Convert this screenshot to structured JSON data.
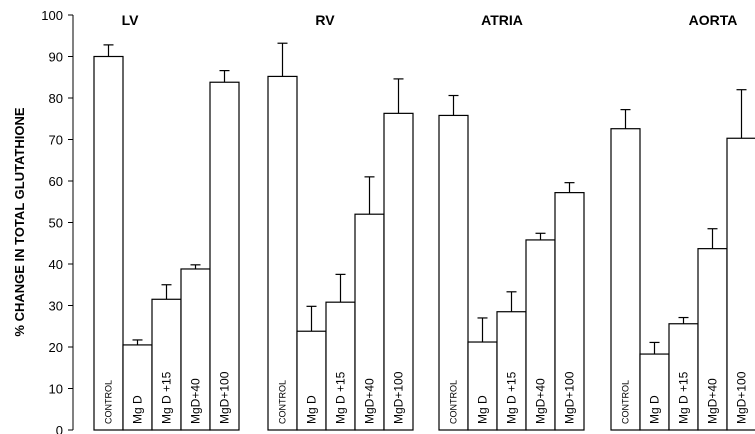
{
  "chart_data": {
    "type": "bar",
    "ylabel": "% CHANGE IN TOTAL GLUTATHIONE",
    "ylim": [
      0,
      100
    ],
    "yticks": [
      0,
      10,
      20,
      30,
      40,
      50,
      60,
      70,
      80,
      90,
      100
    ],
    "categories": [
      "CONTROL",
      "Mg D",
      "Mg D +15",
      "MgD+40",
      "MgD+100"
    ],
    "panels": [
      {
        "title": "LV",
        "values": [
          90,
          20.5,
          31.5,
          38.8,
          83.8
        ],
        "errors": [
          2.8,
          1.2,
          3.5,
          1.0,
          2.8
        ]
      },
      {
        "title": "RV",
        "values": [
          85.2,
          23.8,
          30.8,
          52,
          76.3
        ],
        "errors": [
          8.0,
          6.0,
          6.7,
          9.0,
          8.3
        ]
      },
      {
        "title": "ATRIA",
        "values": [
          75.8,
          21.2,
          28.5,
          45.8,
          57.2
        ],
        "errors": [
          4.8,
          5.8,
          4.8,
          1.6,
          2.4
        ]
      },
      {
        "title": "AORTA",
        "values": [
          72.6,
          18.3,
          25.6,
          43.7,
          70.3
        ],
        "errors": [
          4.6,
          2.8,
          1.5,
          4.8,
          11.7
        ]
      }
    ],
    "grid": false,
    "legend": "none"
  }
}
